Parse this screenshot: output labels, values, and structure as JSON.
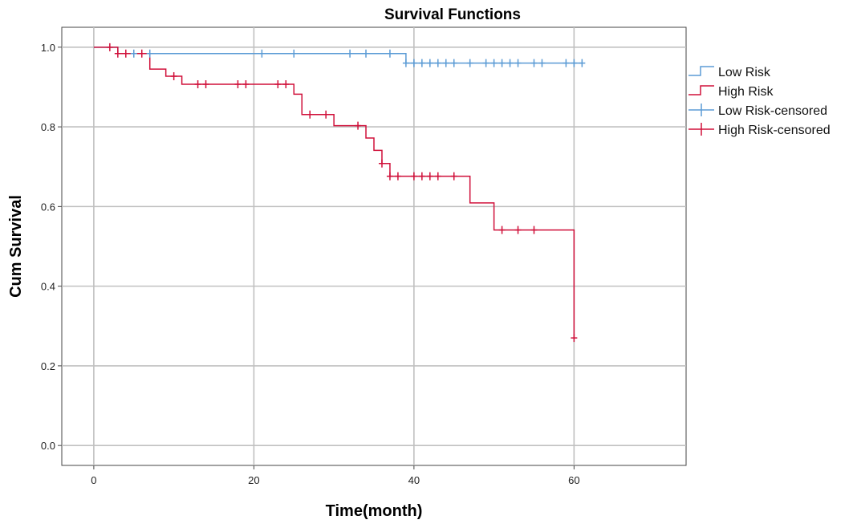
{
  "chart_data": {
    "type": "line",
    "title": "Survival Functions",
    "xlabel": "Time(month)",
    "ylabel": "Cum Survival",
    "xlim": [
      -4,
      74
    ],
    "ylim": [
      -0.05,
      1.05
    ],
    "x_ticks": [
      {
        "value": 0,
        "label": "0"
      },
      {
        "value": 20,
        "label": "20"
      },
      {
        "value": 40,
        "label": "40"
      },
      {
        "value": 60,
        "label": "60"
      }
    ],
    "y_ticks": [
      {
        "value": 0.0,
        "label": "0.0"
      },
      {
        "value": 0.2,
        "label": "0.2"
      },
      {
        "value": 0.4,
        "label": "0.4"
      },
      {
        "value": 0.6,
        "label": "0.6"
      },
      {
        "value": 0.8,
        "label": "0.8"
      },
      {
        "value": 1.0,
        "label": "1.0"
      }
    ],
    "grid": true,
    "legend_position": "right",
    "legend": [
      {
        "label": "Low Risk",
        "series": "low",
        "kind": "line"
      },
      {
        "label": "High Risk",
        "series": "high",
        "kind": "line"
      },
      {
        "label": "Low Risk-censored",
        "series": "low",
        "kind": "censor"
      },
      {
        "label": "High Risk-censored",
        "series": "high",
        "kind": "censor"
      }
    ],
    "series": [
      {
        "id": "low",
        "name": "Low Risk",
        "color": "#5b9bd5",
        "steps": [
          [
            0,
            1.0
          ],
          [
            3,
            0.984
          ],
          [
            39,
            0.96
          ]
        ],
        "end_x": 61,
        "censored": [
          [
            5,
            0.984
          ],
          [
            7,
            0.984
          ],
          [
            21,
            0.984
          ],
          [
            25,
            0.984
          ],
          [
            32,
            0.984
          ],
          [
            34,
            0.984
          ],
          [
            37,
            0.984
          ],
          [
            39,
            0.96
          ],
          [
            40,
            0.96
          ],
          [
            41,
            0.96
          ],
          [
            42,
            0.96
          ],
          [
            43,
            0.96
          ],
          [
            44,
            0.96
          ],
          [
            45,
            0.96
          ],
          [
            47,
            0.96
          ],
          [
            49,
            0.96
          ],
          [
            50,
            0.96
          ],
          [
            51,
            0.96
          ],
          [
            52,
            0.96
          ],
          [
            53,
            0.96
          ],
          [
            55,
            0.96
          ],
          [
            56,
            0.96
          ],
          [
            59,
            0.96
          ],
          [
            60,
            0.96
          ],
          [
            61,
            0.96
          ]
        ]
      },
      {
        "id": "high",
        "name": "High Risk",
        "color": "#d0103a",
        "steps": [
          [
            0,
            1.0
          ],
          [
            3,
            0.984
          ],
          [
            7,
            0.945
          ],
          [
            9,
            0.927
          ],
          [
            11,
            0.907
          ],
          [
            25,
            0.882
          ],
          [
            26,
            0.831
          ],
          [
            30,
            0.803
          ],
          [
            34,
            0.772
          ],
          [
            35,
            0.741
          ],
          [
            36,
            0.708
          ],
          [
            37,
            0.676
          ],
          [
            47,
            0.609
          ],
          [
            50,
            0.541
          ],
          [
            60,
            0.27
          ]
        ],
        "end_x": 60,
        "censored": [
          [
            2,
            1.0
          ],
          [
            3,
            0.984
          ],
          [
            4,
            0.984
          ],
          [
            6,
            0.984
          ],
          [
            10,
            0.927
          ],
          [
            13,
            0.907
          ],
          [
            14,
            0.907
          ],
          [
            18,
            0.907
          ],
          [
            19,
            0.907
          ],
          [
            23,
            0.907
          ],
          [
            24,
            0.907
          ],
          [
            27,
            0.831
          ],
          [
            29,
            0.831
          ],
          [
            33,
            0.803
          ],
          [
            36,
            0.708
          ],
          [
            37,
            0.676
          ],
          [
            38,
            0.676
          ],
          [
            40,
            0.676
          ],
          [
            41,
            0.676
          ],
          [
            42,
            0.676
          ],
          [
            43,
            0.676
          ],
          [
            45,
            0.676
          ],
          [
            51,
            0.541
          ],
          [
            53,
            0.541
          ],
          [
            55,
            0.541
          ],
          [
            60,
            0.27
          ]
        ]
      }
    ]
  }
}
